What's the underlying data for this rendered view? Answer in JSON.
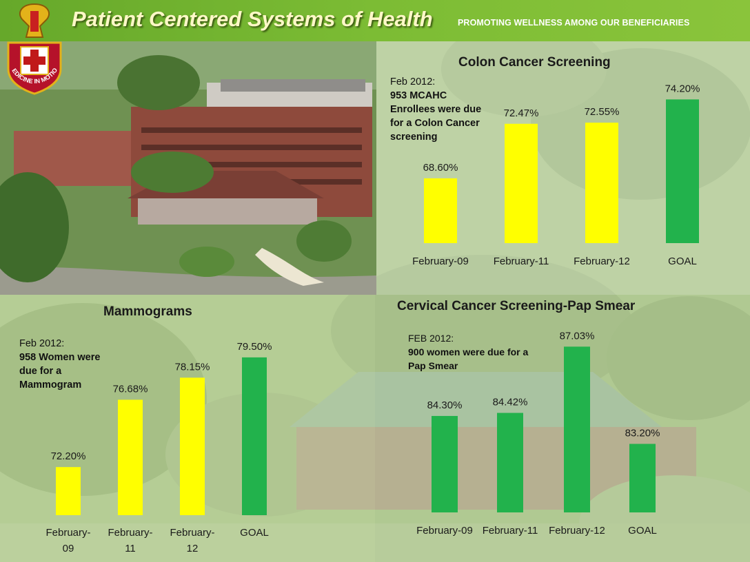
{
  "header": {
    "title": "Patient Centered Systems of Health",
    "tagline": "PROMOTING WELLNESS AMONG OUR BENEFICIARIES"
  },
  "logo": {
    "motto": "MEDICINE IN MOTION"
  },
  "colors": {
    "yellow": "#ffff00",
    "green": "#22b24c",
    "header": "#7cbc34"
  },
  "chart_data": [
    {
      "id": "colon",
      "type": "bar",
      "title": "Colon Cancer Screening",
      "categories": [
        "February-09",
        "February-11",
        "February-12",
        "GOAL"
      ],
      "values": [
        68.6,
        72.47,
        72.55,
        74.2
      ],
      "labels": [
        "68.60%",
        "72.47%",
        "72.55%",
        "74.20%"
      ],
      "colors": [
        "yellow",
        "yellow",
        "yellow",
        "green"
      ],
      "ylim": [
        64,
        75
      ],
      "note": {
        "date": "Feb 2012:",
        "body": "953 MCAHC Enrollees were due for a Colon Cancer screening"
      }
    },
    {
      "id": "mammo",
      "type": "bar",
      "title": "Mammograms",
      "categories": [
        "February-09",
        "February-11",
        "February-12",
        "GOAL"
      ],
      "values": [
        72.2,
        76.68,
        78.15,
        79.5
      ],
      "labels": [
        "72.20%",
        "76.68%",
        "78.15%",
        "79.50%"
      ],
      "colors": [
        "yellow",
        "yellow",
        "yellow",
        "green"
      ],
      "ylim": [
        69,
        80
      ],
      "note": {
        "date": "Feb 2012:",
        "body": "958 Women were due for a Mammogram"
      }
    },
    {
      "id": "cervical",
      "type": "bar",
      "title": "Cervical Cancer Screening-Pap Smear",
      "categories": [
        "February-09",
        "February-11",
        "February-12",
        "GOAL"
      ],
      "values": [
        84.3,
        84.42,
        87.03,
        83.2
      ],
      "labels": [
        "84.30%",
        "84.42%",
        "87.03%",
        "83.20%"
      ],
      "colors": [
        "green",
        "green",
        "green",
        "green"
      ],
      "ylim": [
        80.5,
        87.5
      ],
      "note": {
        "date": "FEB 2012:",
        "body": "900 women were due for a Pap Smear"
      }
    }
  ]
}
